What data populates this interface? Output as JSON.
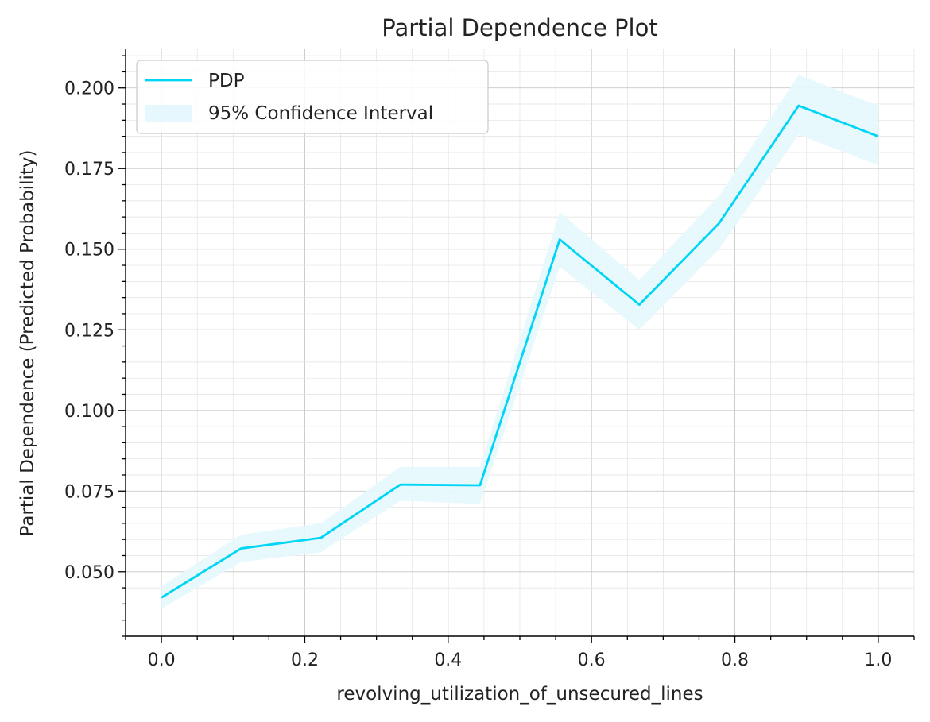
{
  "chart_data": {
    "type": "line",
    "title": "Partial Dependence Plot",
    "xlabel": "revolving_utilization_of_unsecured_lines",
    "ylabel": "Partial Dependence (Predicted Probability)",
    "xlim": [
      -0.05,
      1.05
    ],
    "ylim": [
      0.03,
      0.212
    ],
    "x_ticks": [
      0.0,
      0.2,
      0.4,
      0.6,
      0.8,
      1.0
    ],
    "x_tick_labels": [
      "0.0",
      "0.2",
      "0.4",
      "0.6",
      "0.8",
      "1.0"
    ],
    "y_ticks": [
      0.05,
      0.075,
      0.1,
      0.125,
      0.15,
      0.175,
      0.2
    ],
    "y_tick_labels": [
      "0.050",
      "0.075",
      "0.100",
      "0.125",
      "0.150",
      "0.175",
      "0.200"
    ],
    "grid": true,
    "legend_position": "top-left",
    "series": [
      {
        "name": "PDP",
        "color": "#00d5f5",
        "x": [
          0.0,
          0.1111,
          0.2222,
          0.3333,
          0.4444,
          0.5556,
          0.6667,
          0.7778,
          0.8889,
          1.0
        ],
        "values": [
          0.042,
          0.0572,
          0.0605,
          0.077,
          0.0768,
          0.153,
          0.1328,
          0.158,
          0.1945,
          0.185
        ]
      }
    ],
    "confidence_band": {
      "name": "95% Confidence Interval",
      "color": "#e6f8fd",
      "lower": [
        0.0385,
        0.053,
        0.056,
        0.072,
        0.071,
        0.1445,
        0.125,
        0.15,
        0.1855,
        0.176
      ],
      "upper": [
        0.0455,
        0.0615,
        0.065,
        0.0825,
        0.0825,
        0.1615,
        0.1405,
        0.1665,
        0.204,
        0.1945
      ]
    }
  }
}
